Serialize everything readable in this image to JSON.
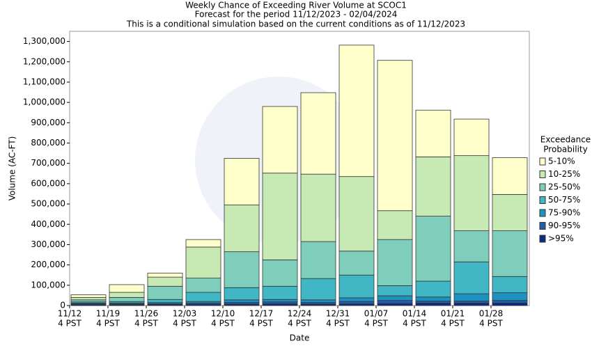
{
  "chart_data": {
    "type": "stacked_bar",
    "title": "Weekly Chance of Exceeding River Volume at SCOC1",
    "subtitle": "Forecast for the period 11/12/2023 - 02/04/2024",
    "note": "This is a conditional simulation based on the current conditions as of 11/12/2023",
    "x_label": "Date",
    "y_label": "Volume (AC-FT)",
    "categories": [
      "11/12",
      "11/19",
      "11/26",
      "12/03",
      "12/10",
      "12/17",
      "12/24",
      "12/31",
      "01/07",
      "01/14",
      "01/21",
      "01/28"
    ],
    "tick_suffix": "4 PST",
    "legend_title": [
      "Exceedance",
      "Probability"
    ],
    "series": [
      {
        "name": ">95%",
        "color": "#0c2c84",
        "values": [
          5000,
          5000,
          5000,
          6000,
          7000,
          8000,
          7000,
          8000,
          10000,
          12000,
          12000,
          12000
        ]
      },
      {
        "name": "90-95%",
        "color": "#225ea8",
        "values": [
          3000,
          3000,
          4000,
          6000,
          8000,
          10000,
          8000,
          12000,
          15000,
          10000,
          10000,
          13000
        ]
      },
      {
        "name": "75-90%",
        "color": "#1d91c0",
        "values": [
          4000,
          5000,
          6000,
          8000,
          13000,
          12000,
          13000,
          18000,
          23000,
          20000,
          36000,
          38000
        ]
      },
      {
        "name": "50-75%",
        "color": "#41b6c4",
        "values": [
          6000,
          7000,
          15000,
          45000,
          60000,
          65000,
          105000,
          112000,
          50000,
          78000,
          157000,
          80000
        ]
      },
      {
        "name": "25-50%",
        "color": "#7fcdbb",
        "values": [
          10000,
          20000,
          65000,
          70000,
          177000,
          130000,
          182000,
          118000,
          227000,
          320000,
          153000,
          225000
        ]
      },
      {
        "name": "10-25%",
        "color": "#c7e9b4",
        "values": [
          12000,
          25000,
          45000,
          153000,
          230000,
          427000,
          332000,
          367000,
          142000,
          292000,
          370000,
          179000
        ]
      },
      {
        "name": "5-10%",
        "color": "#ffffcc",
        "values": [
          13000,
          38000,
          20000,
          37000,
          230000,
          328000,
          401000,
          647000,
          740000,
          230000,
          180000,
          181000
        ]
      }
    ],
    "ylim": [
      0,
      1350000
    ],
    "yticks": [
      0,
      {
        "value": 100000,
        "label": "100,000"
      },
      {
        "value": 200000,
        "label": "200,000"
      },
      {
        "value": 300000,
        "label": "300,000"
      },
      {
        "value": 400000,
        "label": "400,000"
      },
      {
        "value": 500000,
        "label": "500,000"
      },
      {
        "value": 600000,
        "label": "600,000"
      },
      {
        "value": 700000,
        "label": "700,000"
      },
      {
        "value": 800000,
        "label": "800,000"
      },
      {
        "value": 900000,
        "label": "900,000"
      },
      {
        "value": 1000000,
        "label": "1,000,000"
      },
      {
        "value": 1100000,
        "label": "1,100,000"
      },
      {
        "value": 1200000,
        "label": "1,200,000"
      },
      {
        "value": 1300000,
        "label": "1,300,000"
      }
    ],
    "grid": false
  }
}
